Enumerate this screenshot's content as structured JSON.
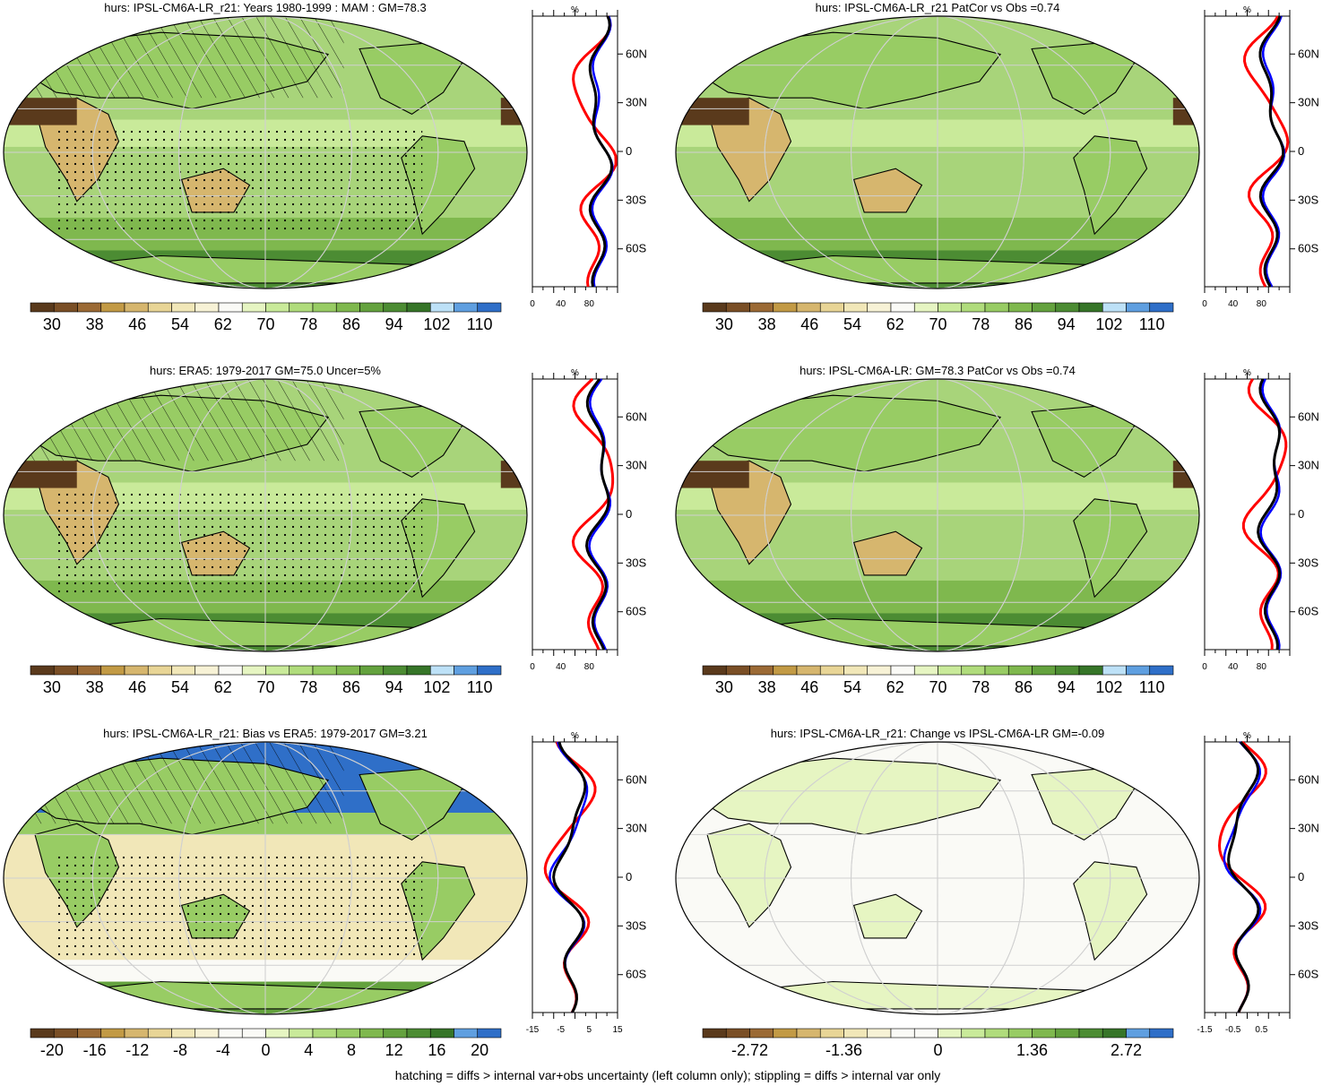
{
  "colors": {
    "full_field": [
      "#5a3a1c",
      "#7a4f26",
      "#9b6a35",
      "#c29a45",
      "#d6b66e",
      "#e8d596",
      "#f1e7b8",
      "#f7f2d6",
      "#fafaf6",
      "#e6f5c2",
      "#c9ea9a",
      "#b0dc7c",
      "#98cc64",
      "#7fb84e",
      "#64a23e",
      "#4c8c33",
      "#367528",
      "#bde1f7",
      "#5f9fe0",
      "#2f6fc8"
    ],
    "profile_model": "#000000",
    "profile_obs": "#0000ff",
    "profile_bias": "#ff0000"
  },
  "footnote": "hatching = diffs > internal var+obs uncertainty (left column only); stippling = diffs > internal var only",
  "panels": [
    {
      "id": "p1",
      "title": "hurs: IPSL-CM6A-LR_r21: Years 1980-1999 : MAM : GM=78.3",
      "colorbar_labels": [
        "30",
        "38",
        "46",
        "54",
        "62",
        "70",
        "78",
        "86",
        "94",
        "102",
        "110"
      ],
      "colorbar_scheme": "full",
      "profile_unit": "%",
      "profile_xticks": [
        "0",
        "40",
        "80"
      ],
      "profile_lat_labels": [
        "60N",
        "30N",
        "0",
        "30S",
        "60S"
      ]
    },
    {
      "id": "p2",
      "title": "hurs: IPSL-CM6A-LR_r21 PatCor vs Obs =0.74",
      "colorbar_labels": [
        "30",
        "38",
        "46",
        "54",
        "62",
        "70",
        "78",
        "86",
        "94",
        "102",
        "110"
      ],
      "colorbar_scheme": "full",
      "profile_unit": "%",
      "profile_xticks": [
        "0",
        "40",
        "80"
      ],
      "profile_lat_labels": [
        "60N",
        "30N",
        "0",
        "30S",
        "60S"
      ]
    },
    {
      "id": "p3",
      "title": "hurs: ERA5: 1979-2017 GM=75.0 Uncer=5%",
      "colorbar_labels": [
        "30",
        "38",
        "46",
        "54",
        "62",
        "70",
        "78",
        "86",
        "94",
        "102",
        "110"
      ],
      "colorbar_scheme": "full",
      "profile_unit": "%",
      "profile_xticks": [
        "0",
        "40",
        "80"
      ],
      "profile_lat_labels": [
        "60N",
        "30N",
        "0",
        "30S",
        "60S"
      ]
    },
    {
      "id": "p4",
      "title": "hurs: IPSL-CM6A-LR: GM=78.3 PatCor vs Obs =0.74",
      "colorbar_labels": [
        "30",
        "38",
        "46",
        "54",
        "62",
        "70",
        "78",
        "86",
        "94",
        "102",
        "110"
      ],
      "colorbar_scheme": "full",
      "profile_unit": "%",
      "profile_xticks": [
        "0",
        "40",
        "80"
      ],
      "profile_lat_labels": [
        "60N",
        "30N",
        "0",
        "30S",
        "60S"
      ]
    },
    {
      "id": "p5",
      "title": "hurs: IPSL-CM6A-LR_r21: Bias vs ERA5: 1979-2017 GM=3.21",
      "colorbar_labels": [
        "-20",
        "-16",
        "-12",
        "-8",
        "-4",
        "0",
        "4",
        "8",
        "12",
        "16",
        "20"
      ],
      "colorbar_scheme": "diff",
      "profile_unit": "%",
      "profile_xticks": [
        "-15",
        "-5",
        "5",
        "15"
      ],
      "profile_lat_labels": [
        "60N",
        "30N",
        "0",
        "30S",
        "60S"
      ]
    },
    {
      "id": "p6",
      "title": "hurs: IPSL-CM6A-LR_r21: Change vs IPSL-CM6A-LR GM=-0.09",
      "colorbar_labels": [
        "-2.72",
        "-1.36",
        "0",
        "1.36",
        "2.72"
      ],
      "colorbar_scheme": "diff",
      "profile_unit": "%",
      "profile_xticks": [
        "-1.5",
        "-0.5",
        "0.5"
      ],
      "profile_lat_labels": [
        "60N",
        "30N",
        "0",
        "30S",
        "60S"
      ]
    }
  ]
}
